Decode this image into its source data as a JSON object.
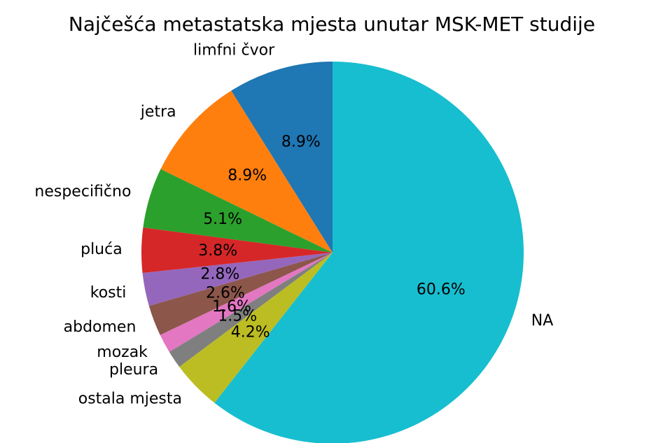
{
  "chart_data": {
    "type": "pie",
    "title": "Najčešća metastatska mjesta unutar MSK-MET studije",
    "categories": [
      "limfni čvor",
      "jetra",
      "nespecifično",
      "pluća",
      "kosti",
      "abdomen",
      "mozak",
      "pleura",
      "ostala mjesta",
      "NA"
    ],
    "values": [
      8.9,
      8.9,
      5.1,
      3.8,
      2.8,
      2.6,
      1.6,
      1.5,
      4.2,
      60.6
    ],
    "value_labels": [
      "8.9%",
      "8.9%",
      "5.1%",
      "3.8%",
      "2.8%",
      "2.6%",
      "1.6%",
      "1.5%",
      "4.2%",
      "60.6%"
    ],
    "colors": [
      "#1f77b4",
      "#ff7f0e",
      "#2ca02c",
      "#d62728",
      "#9467bd",
      "#8c564b",
      "#e377c2",
      "#7f7f7f",
      "#bcbd22",
      "#17becf"
    ],
    "start_angle": 90
  }
}
